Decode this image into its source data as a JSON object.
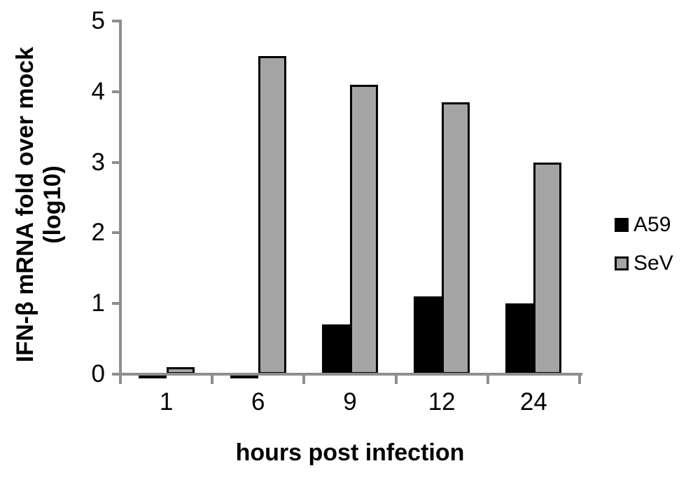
{
  "chart_data": {
    "type": "bar",
    "title": "",
    "xlabel": "hours post infection",
    "ylabel_line1": "IFN-β mRNA fold over mock",
    "ylabel_line2": "(log10)",
    "categories": [
      "1",
      "6",
      "9",
      "12",
      "24"
    ],
    "series": [
      {
        "name": "A59",
        "color": "#000000",
        "border": "#000000",
        "values": [
          -0.05,
          -0.05,
          0.7,
          1.1,
          1.0
        ]
      },
      {
        "name": "SeV",
        "color": "#A5A5A5",
        "border": "#000000",
        "values": [
          0.1,
          4.5,
          4.1,
          3.85,
          3.0
        ]
      }
    ],
    "ylim": [
      0,
      5
    ],
    "yticks": [
      0,
      1,
      2,
      3,
      4,
      5
    ],
    "grid": false,
    "legend_position": "right",
    "colors": {
      "axis": "#8E8E8E",
      "text": "#000000",
      "background": "#FFFFFF"
    }
  }
}
